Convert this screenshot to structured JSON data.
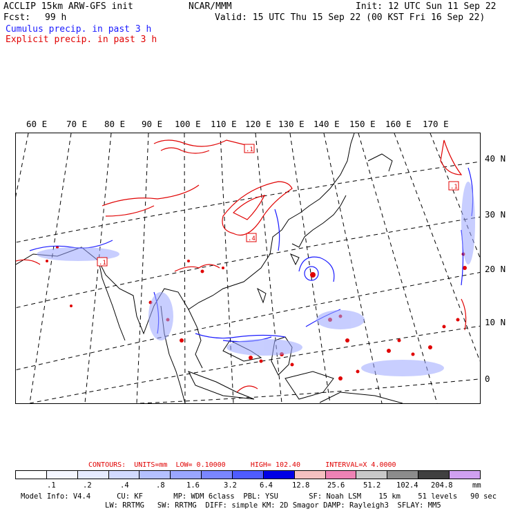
{
  "header": {
    "model": "ACCLIP 15km ARW-GFS init",
    "org": "NCAR/MMM",
    "init": "Init: 12 UTC Sun 11 Sep 22",
    "fcst_label": "Fcst:",
    "fcst_value": "99 h",
    "valid": "Valid: 15 UTC Thu 15 Sep 22 (00 KST Fri 16 Sep 22)",
    "field_cumulus": "Cumulus precip. in past 3 h",
    "field_explicit": "Explicit precip. in past 3 h"
  },
  "map": {
    "lon_labels": [
      "60 E",
      "70 E",
      "80 E",
      "90 E",
      "100 E",
      "110 E",
      "120 E",
      "130 E",
      "140 E",
      "150 E",
      "160 E",
      "170 E"
    ],
    "lat_labels": [
      "40 N",
      "30 N",
      "20 N",
      "10 N",
      "0"
    ],
    "max_markers": [
      ".1",
      ".4",
      ".1",
      ".1"
    ],
    "colors": {
      "cumulus": "#1a1aff",
      "explicit": "#e00000",
      "coast": "#000000"
    }
  },
  "contours": {
    "label": "CONTOURS:",
    "units": "UNITS=mm",
    "low": "LOW= 0.10000",
    "high": "HIGH= 102.40",
    "interval": "INTERVAL=X 4.0000"
  },
  "colorbar": {
    "colors": [
      "#ffffff",
      "#f4f6ff",
      "#e6ebff",
      "#d2daff",
      "#b4c0ff",
      "#9aa6ff",
      "#7a86ff",
      "#4f5cff",
      "#0000e6",
      "#f5c0c0",
      "#ee82b4",
      "#c8c8c8",
      "#8c8c8c",
      "#404040",
      "#d0a0f0"
    ],
    "ticks": [
      ".1",
      ".2",
      ".4",
      ".8",
      "1.6",
      "3.2",
      "6.4",
      "12.8",
      "25.6",
      "51.2",
      "102.4",
      "204.8"
    ],
    "unit": "mm"
  },
  "footer": {
    "line1": "Model Info: V4.4      CU: KF       MP: WDM 6class  PBL: YSU       SF: Noah LSM    15 km    51 levels   90 sec",
    "line2": "LW: RRTMG   SW: RRTMG  DIFF: simple KM: 2D Smagor DAMP: Rayleigh3  SFLAY: MM5"
  }
}
